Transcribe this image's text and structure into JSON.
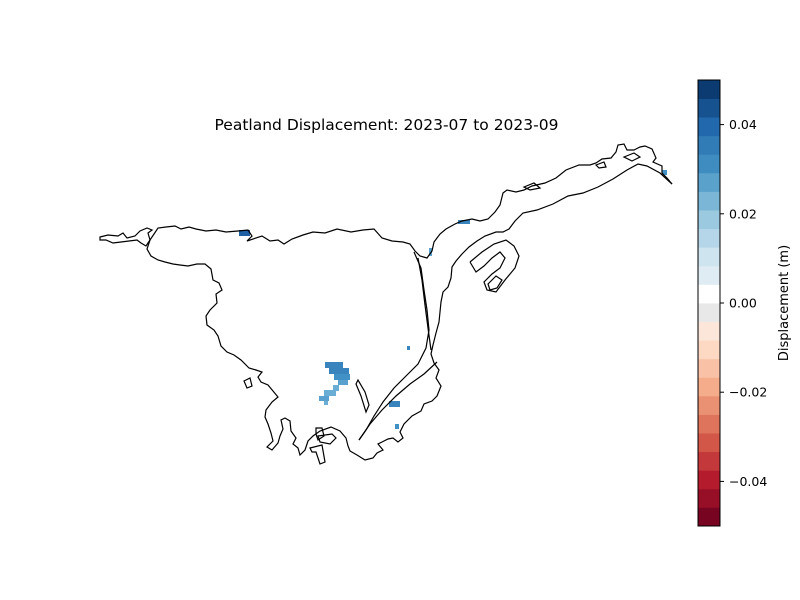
{
  "title": "Peatland Displacement: 2023-07 to 2023-09",
  "colorbar": {
    "label": "Displacement (m)",
    "colormap": "RdBu",
    "vmin": -0.05,
    "vmax": 0.05,
    "levels": 24,
    "ticks": [
      {
        "value": 0.04,
        "label": "0.04"
      },
      {
        "value": 0.02,
        "label": "0.02"
      },
      {
        "value": 0.0,
        "label": "0.00"
      },
      {
        "value": -0.02,
        "label": "−0.02"
      },
      {
        "value": -0.04,
        "label": "−0.04"
      }
    ]
  },
  "colors": {
    "coastline": "#000000",
    "background": "#ffffff"
  }
}
